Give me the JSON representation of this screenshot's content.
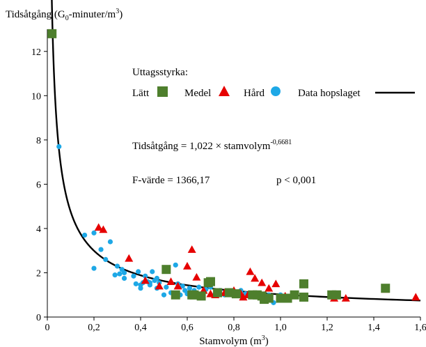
{
  "chart_data": {
    "type": "scatter",
    "ylabel": {
      "pre": "Tidsåtgång (G",
      "sub": "0",
      "mid": "-minuter/m",
      "sup": "3",
      "post": ")"
    },
    "xlabel": {
      "pre": "Stamvolym (m",
      "sup": "3",
      "post": ")"
    },
    "x_ticks": [
      "0",
      "0,2",
      "0,4",
      "0,6",
      "0,8",
      "1,0",
      "1,2",
      "1,4",
      "1,6"
    ],
    "y_ticks": [
      "0",
      "2",
      "4",
      "6",
      "8",
      "10",
      "12"
    ],
    "xlim": [
      0,
      1.6
    ],
    "ylim": [
      0,
      13
    ],
    "grid": false,
    "legend": {
      "title": "Uttagsstyrka:",
      "items": [
        {
          "label": "Lätt",
          "marker": "square",
          "color": "#4e7f2d"
        },
        {
          "label": "Medel",
          "marker": "triangle",
          "color": "#e60000"
        },
        {
          "label": "Hård",
          "marker": "circle",
          "color": "#1ea8e6"
        },
        {
          "label": "Data hopslaget",
          "marker": "line",
          "color": "#000000"
        }
      ],
      "placement": "top-center"
    },
    "annotations": {
      "equation_pre": "Tidsåtgång = 1,022 × stamvolym",
      "equation_exp": "-0,6681",
      "f_value": "F-värde = 1366,17",
      "p_value": "p < 0,001"
    },
    "fit": {
      "a": 1.022,
      "b": -0.6681,
      "x_start": 0.0085,
      "x_end": 1.6
    },
    "series": [
      {
        "name": "Lätt",
        "marker": "square",
        "color": "#4e7f2d",
        "points": [
          [
            0.02,
            12.8
          ],
          [
            0.51,
            2.15
          ],
          [
            0.55,
            1.0
          ],
          [
            0.62,
            1.0
          ],
          [
            0.63,
            1.0
          ],
          [
            0.66,
            0.95
          ],
          [
            0.69,
            1.55
          ],
          [
            0.7,
            1.6
          ],
          [
            0.73,
            1.1
          ],
          [
            0.78,
            1.1
          ],
          [
            0.81,
            1.05
          ],
          [
            0.88,
            1.0
          ],
          [
            0.92,
            0.95
          ],
          [
            0.93,
            0.8
          ],
          [
            0.95,
            0.85
          ],
          [
            1.0,
            0.85
          ],
          [
            1.03,
            0.85
          ],
          [
            1.06,
            1.0
          ],
          [
            1.1,
            1.5
          ],
          [
            1.22,
            1.0
          ],
          [
            1.45,
            1.3
          ],
          [
            1.1,
            0.9
          ],
          [
            1.24,
            1.0
          ],
          [
            0.9,
            1.0
          ]
        ]
      },
      {
        "name": "Medel",
        "marker": "triangle",
        "color": "#e60000",
        "points": [
          [
            0.22,
            4.05
          ],
          [
            0.24,
            3.95
          ],
          [
            0.35,
            2.65
          ],
          [
            0.42,
            1.65
          ],
          [
            0.48,
            1.4
          ],
          [
            0.53,
            1.6
          ],
          [
            0.56,
            1.4
          ],
          [
            0.6,
            2.3
          ],
          [
            0.62,
            3.05
          ],
          [
            0.64,
            1.8
          ],
          [
            0.67,
            1.2
          ],
          [
            0.7,
            1.05
          ],
          [
            0.72,
            1.0
          ],
          [
            0.76,
            1.1
          ],
          [
            0.8,
            1.2
          ],
          [
            0.83,
            1.05
          ],
          [
            0.86,
            1.0
          ],
          [
            0.87,
            2.05
          ],
          [
            0.89,
            1.75
          ],
          [
            0.92,
            1.55
          ],
          [
            0.95,
            1.3
          ],
          [
            0.98,
            1.5
          ],
          [
            1.02,
            0.95
          ],
          [
            1.1,
            0.9
          ],
          [
            1.23,
            0.85
          ],
          [
            1.28,
            0.85
          ],
          [
            1.45,
            1.25
          ],
          [
            1.58,
            0.9
          ],
          [
            0.9,
            1.0
          ],
          [
            0.84,
            0.9
          ]
        ]
      },
      {
        "name": "Hård",
        "marker": "circle",
        "color": "#1ea8e6",
        "points": [
          [
            0.05,
            7.7
          ],
          [
            0.16,
            3.7
          ],
          [
            0.2,
            3.8
          ],
          [
            0.2,
            2.2
          ],
          [
            0.23,
            3.05
          ],
          [
            0.25,
            2.6
          ],
          [
            0.27,
            3.4
          ],
          [
            0.29,
            1.9
          ],
          [
            0.3,
            2.3
          ],
          [
            0.31,
            1.95
          ],
          [
            0.32,
            2.15
          ],
          [
            0.33,
            2.0
          ],
          [
            0.37,
            1.85
          ],
          [
            0.38,
            1.5
          ],
          [
            0.39,
            2.05
          ],
          [
            0.4,
            1.3
          ],
          [
            0.41,
            1.55
          ],
          [
            0.42,
            1.85
          ],
          [
            0.43,
            1.6
          ],
          [
            0.44,
            1.55
          ],
          [
            0.45,
            2.05
          ],
          [
            0.46,
            1.65
          ],
          [
            0.47,
            1.3
          ],
          [
            0.48,
            1.55
          ],
          [
            0.5,
            1.0
          ],
          [
            0.51,
            1.35
          ],
          [
            0.53,
            1.1
          ],
          [
            0.55,
            2.35
          ],
          [
            0.56,
            1.5
          ],
          [
            0.57,
            1.0
          ],
          [
            0.59,
            1.2
          ],
          [
            0.6,
            1.05
          ],
          [
            0.61,
            1.3
          ],
          [
            0.62,
            0.95
          ],
          [
            0.63,
            1.2
          ],
          [
            0.65,
            1.35
          ],
          [
            0.67,
            1.15
          ],
          [
            0.68,
            1.25
          ],
          [
            0.7,
            1.35
          ],
          [
            0.72,
            1.05
          ],
          [
            0.74,
            1.2
          ],
          [
            0.76,
            1.0
          ],
          [
            0.78,
            1.15
          ],
          [
            0.8,
            1.0
          ],
          [
            0.83,
            1.2
          ],
          [
            0.85,
            1.05
          ],
          [
            0.88,
            1.0
          ],
          [
            0.9,
            0.95
          ],
          [
            0.92,
            0.9
          ],
          [
            0.95,
            1.0
          ],
          [
            0.97,
            0.65
          ],
          [
            1.0,
            1.0
          ],
          [
            1.05,
            0.95
          ],
          [
            0.33,
            1.75
          ],
          [
            0.44,
            1.45
          ],
          [
            0.58,
            1.4
          ],
          [
            0.4,
            1.45
          ],
          [
            0.47,
            1.75
          ]
        ]
      }
    ]
  }
}
